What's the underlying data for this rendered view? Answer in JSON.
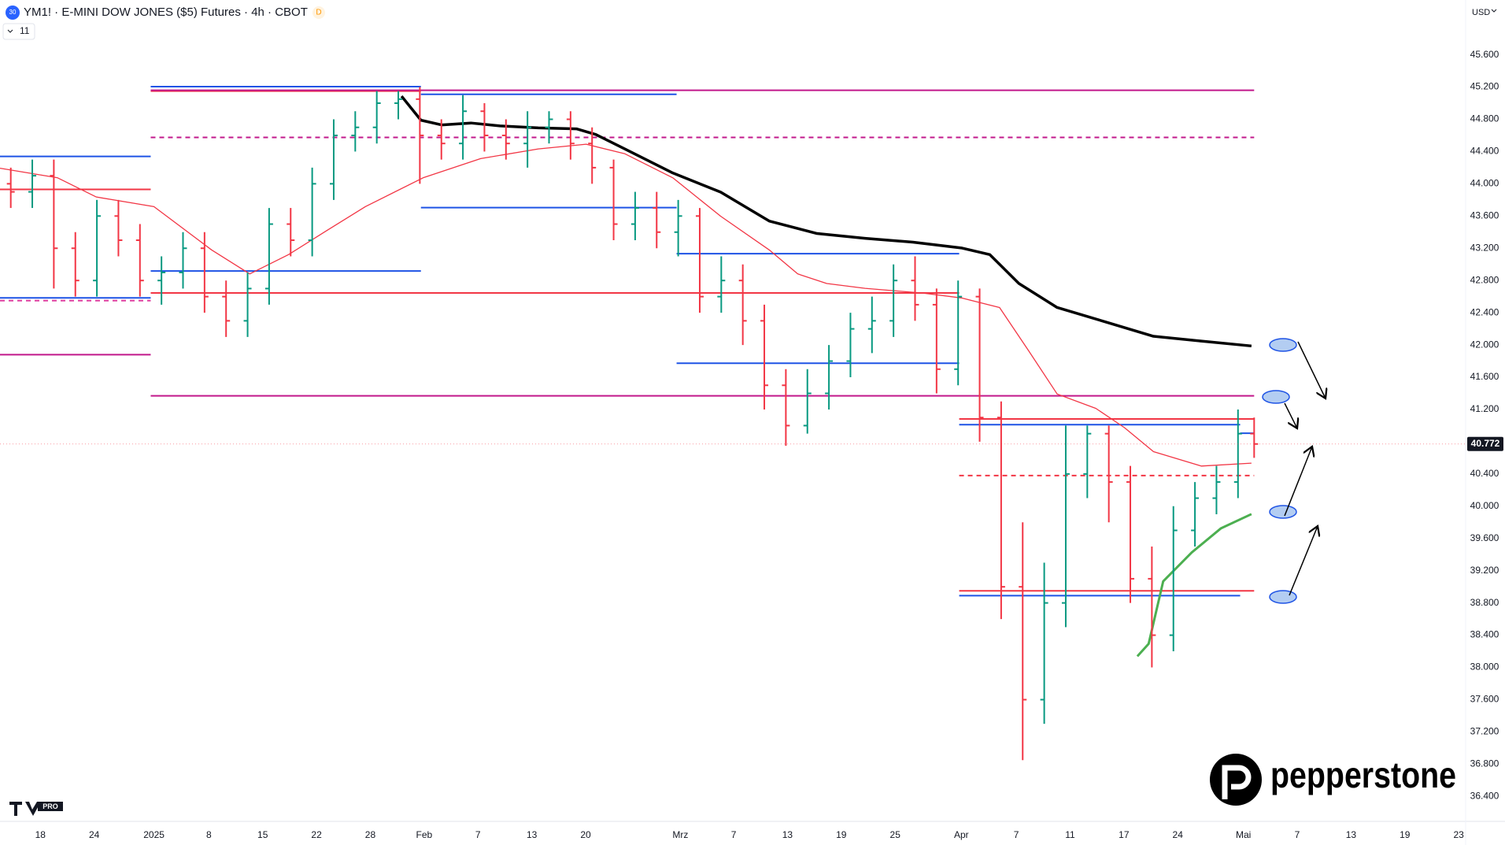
{
  "header": {
    "symbol_badge": "30",
    "title": "YM1! · E-MINI DOW JONES ($5) Futures · 4h · CBOT",
    "badge": "D",
    "currency": "USD",
    "indicator_count": "11"
  },
  "chart_data": {
    "type": "ohlc",
    "x": [
      0.2,
      0.6,
      1.0,
      1.4,
      1.8,
      2.2,
      2.6,
      3.0,
      3.4,
      3.8,
      4.2,
      4.6,
      5.0,
      5.4,
      5.8,
      6.2,
      6.6,
      7.0,
      7.4,
      7.8,
      8.2,
      8.6,
      9.0,
      9.4,
      9.8,
      10.2,
      10.6,
      11.0,
      11.4,
      11.8,
      12.2,
      12.6,
      13.0,
      13.4,
      13.8,
      14.2,
      14.6,
      15.0,
      15.4,
      15.8,
      16.2,
      16.6,
      17.0,
      17.4,
      17.8,
      18.2,
      18.6,
      19.0,
      19.4,
      19.8,
      20.2,
      20.6,
      21.0,
      21.4,
      21.8,
      22.2,
      22.6,
      23.0,
      23.3
    ],
    "open": [
      44000,
      43900,
      44100,
      43200,
      42800,
      43600,
      43300,
      42800,
      42900,
      43200,
      42600,
      42300,
      42700,
      43500,
      43300,
      44000,
      44600,
      44700,
      45000,
      45050,
      44600,
      44500,
      44900,
      44600,
      44500,
      44700,
      44800,
      44500,
      44200,
      43500,
      43700,
      43400,
      43600,
      42600,
      42800,
      42300,
      41500,
      41000,
      41400,
      41800,
      42200,
      42300,
      42800,
      42500,
      41700,
      42600,
      41100,
      39000,
      37600,
      38800,
      40400,
      40900,
      40300,
      39100,
      38400,
      39700,
      40100,
      40300,
      40900
    ],
    "high": [
      44200,
      44300,
      44300,
      43400,
      43800,
      43800,
      43500,
      43100,
      43400,
      43400,
      42800,
      42900,
      43700,
      43700,
      44200,
      44800,
      44900,
      45150,
      45150,
      45200,
      44800,
      45100,
      45000,
      44800,
      44900,
      44900,
      44900,
      44700,
      44300,
      43900,
      43900,
      43800,
      43700,
      43100,
      43000,
      42500,
      41700,
      41700,
      42000,
      42400,
      42600,
      43000,
      43100,
      42700,
      42800,
      42700,
      41300,
      39800,
      39300,
      41000,
      41000,
      41000,
      40500,
      39500,
      40000,
      40300,
      40500,
      41200,
      41100
    ],
    "low": [
      43700,
      43700,
      42700,
      42600,
      42600,
      43100,
      42600,
      42500,
      42700,
      42400,
      42100,
      42100,
      42500,
      43100,
      43100,
      43800,
      44400,
      44500,
      44800,
      44000,
      44300,
      44300,
      44400,
      44300,
      44200,
      44500,
      44300,
      44000,
      43300,
      43300,
      43200,
      43100,
      42400,
      42400,
      42000,
      41200,
      40750,
      40900,
      41200,
      41600,
      41900,
      42100,
      42300,
      41400,
      41500,
      40800,
      38600,
      36850,
      37300,
      38500,
      40100,
      39800,
      38800,
      38000,
      38200,
      39500,
      39900,
      40100,
      40600
    ],
    "close": [
      43900,
      44100,
      43200,
      42800,
      43600,
      43300,
      42800,
      42900,
      43200,
      42600,
      42300,
      42700,
      43500,
      43300,
      44000,
      44600,
      44700,
      45000,
      45050,
      44600,
      44500,
      44900,
      44600,
      44500,
      44700,
      44800,
      44500,
      44200,
      43500,
      43700,
      43400,
      43600,
      42600,
      42800,
      42300,
      41500,
      41000,
      41400,
      41800,
      42200,
      42300,
      42800,
      42500,
      41700,
      42600,
      41100,
      39000,
      37600,
      38800,
      40400,
      40900,
      40300,
      39100,
      38400,
      39700,
      40100,
      40300,
      40900,
      40772
    ],
    "up_color": "#089981",
    "down_color": "#f23645",
    "xlim": [
      0,
      27.2
    ],
    "xticks": [
      {
        "value": 0.75,
        "label": "18"
      },
      {
        "value": 1.75,
        "label": "24"
      },
      {
        "value": 2.86,
        "label": "2025"
      },
      {
        "value": 3.88,
        "label": "8"
      },
      {
        "value": 4.88,
        "label": "15"
      },
      {
        "value": 5.88,
        "label": "22"
      },
      {
        "value": 6.88,
        "label": "28"
      },
      {
        "value": 7.88,
        "label": "Feb"
      },
      {
        "value": 8.88,
        "label": "7"
      },
      {
        "value": 9.88,
        "label": "13"
      },
      {
        "value": 10.88,
        "label": "20"
      },
      {
        "value": 12.64,
        "label": "Mrz"
      },
      {
        "value": 13.63,
        "label": "7"
      },
      {
        "value": 14.63,
        "label": "13"
      },
      {
        "value": 15.63,
        "label": "19"
      },
      {
        "value": 16.63,
        "label": "25"
      },
      {
        "value": 17.86,
        "label": "Apr"
      },
      {
        "value": 18.88,
        "label": "7"
      },
      {
        "value": 19.88,
        "label": "11"
      },
      {
        "value": 20.88,
        "label": "17"
      },
      {
        "value": 21.88,
        "label": "24"
      },
      {
        "value": 23.1,
        "label": "Mai"
      },
      {
        "value": 24.1,
        "label": "7"
      },
      {
        "value": 25.1,
        "label": "13"
      },
      {
        "value": 26.1,
        "label": "19"
      },
      {
        "value": 27.1,
        "label": "23"
      }
    ],
    "ylim": [
      36090,
      46280
    ],
    "yticks": [
      {
        "value": 36400,
        "label": "36.400"
      },
      {
        "value": 36800,
        "label": "36.800"
      },
      {
        "value": 37200,
        "label": "37.200"
      },
      {
        "value": 37600,
        "label": "37.600"
      },
      {
        "value": 38000,
        "label": "38.000"
      },
      {
        "value": 38400,
        "label": "38.400"
      },
      {
        "value": 38800,
        "label": "38.800"
      },
      {
        "value": 39200,
        "label": "39.200"
      },
      {
        "value": 39600,
        "label": "39.600"
      },
      {
        "value": 40000,
        "label": "40.000"
      },
      {
        "value": 40400,
        "label": "40.400"
      },
      {
        "value": 40800,
        "label": "40.800"
      },
      {
        "value": 41200,
        "label": "41.200"
      },
      {
        "value": 41600,
        "label": "41.600"
      },
      {
        "value": 42000,
        "label": "42.000"
      },
      {
        "value": 42400,
        "label": "42.400"
      },
      {
        "value": 42800,
        "label": "42.800"
      },
      {
        "value": 43200,
        "label": "43.200"
      },
      {
        "value": 43600,
        "label": "43.600"
      },
      {
        "value": 44000,
        "label": "44.000"
      },
      {
        "value": 44400,
        "label": "44.400"
      },
      {
        "value": 44800,
        "label": "44.800"
      },
      {
        "value": 45200,
        "label": "45.200"
      },
      {
        "value": 45600,
        "label": "45.600"
      }
    ],
    "last_price": {
      "value": 40772,
      "label": "40.772"
    },
    "lines": [
      {
        "color": "#f23645",
        "width": 1.3,
        "x": [
          0,
          1.07,
          1.79,
          2.86,
          3.93,
          4.64,
          5.36,
          6.07,
          6.79,
          7.86,
          8.93,
          10.0,
          10.89,
          11.61,
          12.5,
          13.39,
          14.29,
          14.82,
          15.36,
          16.07,
          17.14,
          17.86,
          18.57,
          19.11,
          19.64,
          20.36,
          20.89,
          21.43,
          22.32,
          23.25
        ],
        "values": [
          44193,
          44074,
          43836,
          43717,
          43180,
          42882,
          43121,
          43419,
          43717,
          44074,
          44313,
          44432,
          44491,
          44372,
          44074,
          43597,
          43180,
          42882,
          42763,
          42703,
          42644,
          42584,
          42465,
          41929,
          41392,
          41213,
          40975,
          40677,
          40498,
          40534
        ]
      },
      {
        "color": "#000000",
        "width": 3.5,
        "x": [
          7.46,
          7.82,
          8.21,
          8.75,
          9.29,
          10.0,
          10.71,
          11.07,
          11.61,
          12.5,
          13.39,
          14.29,
          15.18,
          16.07,
          16.96,
          17.86,
          18.39,
          18.93,
          19.64,
          20.54,
          21.43,
          22.32,
          23.25
        ],
        "values": [
          45087,
          44789,
          44730,
          44754,
          44718,
          44694,
          44682,
          44611,
          44432,
          44134,
          43896,
          43538,
          43383,
          43323,
          43276,
          43204,
          43121,
          42763,
          42465,
          42286,
          42108,
          42048,
          41988
        ]
      },
      {
        "color": "#4caf50",
        "width": 3,
        "x": [
          21.13,
          21.34,
          21.61,
          22.14,
          22.68,
          23.25
        ],
        "values": [
          38138,
          38293,
          39068,
          39426,
          39724,
          39902
        ]
      }
    ],
    "levels": [
      {
        "value": 44340,
        "x": [
          0,
          2.8
        ],
        "color": "#1e53e5",
        "dashed": false
      },
      {
        "value": 43930,
        "x": [
          0,
          2.8
        ],
        "color": "#f23645",
        "dashed": false
      },
      {
        "value": 42585,
        "x": [
          0,
          2.8
        ],
        "color": "#1e53e5",
        "dashed": false
      },
      {
        "value": 42550,
        "x": [
          0,
          2.8
        ],
        "color": "#e040a0",
        "dashed": true
      },
      {
        "value": 41880,
        "x": [
          0,
          2.8
        ],
        "color": "#c2188b",
        "dashed": false
      },
      {
        "value": 45205,
        "x": [
          2.8,
          7.82
        ],
        "color": "#1e53e5",
        "dashed": false
      },
      {
        "value": 45150,
        "x": [
          2.8,
          7.82
        ],
        "color": "#f23645",
        "dashed": false
      },
      {
        "value": 45110,
        "x": [
          7.82,
          12.57
        ],
        "color": "#1e53e5",
        "dashed": false
      },
      {
        "value": 45160,
        "x": [
          2.8,
          23.3
        ],
        "color": "#c2188b",
        "dashed": false
      },
      {
        "value": 44575,
        "x": [
          2.8,
          23.3
        ],
        "color": "#c2188b",
        "dashed": true
      },
      {
        "value": 43705,
        "x": [
          7.82,
          12.57
        ],
        "color": "#1e53e5",
        "dashed": false
      },
      {
        "value": 42918,
        "x": [
          2.8,
          7.82
        ],
        "color": "#1e53e5",
        "dashed": false
      },
      {
        "value": 42645,
        "x": [
          2.8,
          17.82
        ],
        "color": "#f23645",
        "dashed": false
      },
      {
        "value": 43133,
        "x": [
          12.57,
          17.82
        ],
        "color": "#1e53e5",
        "dashed": false
      },
      {
        "value": 41774,
        "x": [
          12.57,
          17.82
        ],
        "color": "#1e53e5",
        "dashed": false
      },
      {
        "value": 41369,
        "x": [
          2.8,
          23.3
        ],
        "color": "#c2188b",
        "dashed": false
      },
      {
        "value": 41083,
        "x": [
          17.82,
          23.3
        ],
        "color": "#f23645",
        "dashed": false
      },
      {
        "value": 41011,
        "x": [
          17.82,
          23.04
        ],
        "color": "#1e53e5",
        "dashed": false
      },
      {
        "value": 40380,
        "x": [
          17.82,
          23.3
        ],
        "color": "#f23645",
        "dashed": true
      },
      {
        "value": 38950,
        "x": [
          17.82,
          23.3
        ],
        "color": "#f23645",
        "dashed": false
      },
      {
        "value": 38890,
        "x": [
          17.82,
          23.04
        ],
        "color": "#1e53e5",
        "dashed": false
      },
      {
        "value": 40905,
        "x": [
          23.04,
          23.3
        ],
        "color": "#1e53e5",
        "dashed": false
      }
    ]
  },
  "branding": {
    "tv": "PRO",
    "logo": "pepperstone"
  }
}
